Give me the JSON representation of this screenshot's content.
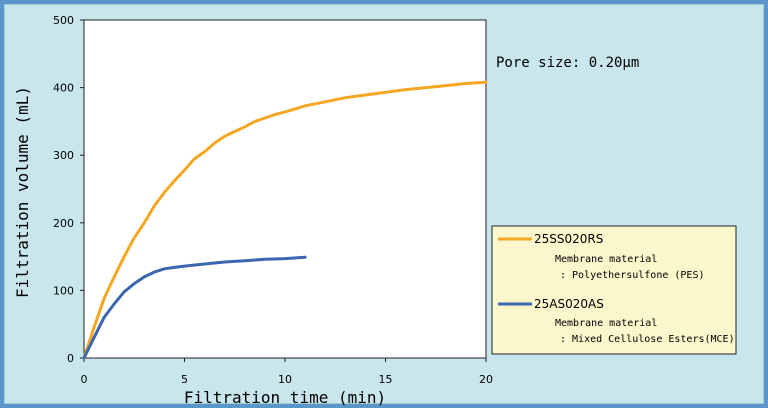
{
  "chart_data": {
    "type": "line",
    "xlabel": "Filtration time (min)",
    "ylabel": "Filtration volume (mL)",
    "xlim": [
      0,
      20
    ],
    "ylim": [
      0,
      500
    ],
    "xticks": [
      "0",
      "5",
      "10",
      "15",
      "20"
    ],
    "yticks": [
      "0",
      "100",
      "200",
      "300",
      "400",
      "500"
    ],
    "grid": false,
    "legend_position": "right",
    "annotation": "Pore size: 0.20μm",
    "series": [
      {
        "name": "25SS020RS",
        "description_line1": "Membrane material",
        "description_line2": ": Polyethersulfone (PES)",
        "color": "#f5a623",
        "x": [
          0,
          0.5,
          1,
          1.5,
          2,
          2.5,
          3,
          3.5,
          4,
          4.5,
          5,
          5.5,
          6,
          6.5,
          7,
          7.5,
          8,
          8.5,
          9,
          9.5,
          10,
          11,
          12,
          13,
          14,
          15,
          16,
          17,
          18,
          19,
          20
        ],
        "values": [
          0,
          45,
          88,
          120,
          150,
          178,
          200,
          225,
          245,
          262,
          278,
          295,
          305,
          318,
          328,
          335,
          342,
          350,
          355,
          360,
          364,
          373,
          379,
          385,
          389,
          393,
          397,
          400,
          403,
          406,
          408
        ]
      },
      {
        "name": "25AS020AS",
        "description_line1": "Membrane material",
        "description_line2": ": Mixed Cellulose Esters(MCE)",
        "color": "#3a67b0",
        "x": [
          0,
          0.5,
          1,
          1.5,
          2,
          2.5,
          3,
          3.5,
          4,
          4.5,
          5,
          6,
          7,
          8,
          9,
          10,
          11
        ],
        "values": [
          0,
          30,
          60,
          80,
          98,
          110,
          120,
          127,
          132,
          134,
          136,
          139,
          142,
          144,
          146,
          147,
          149
        ]
      }
    ]
  }
}
